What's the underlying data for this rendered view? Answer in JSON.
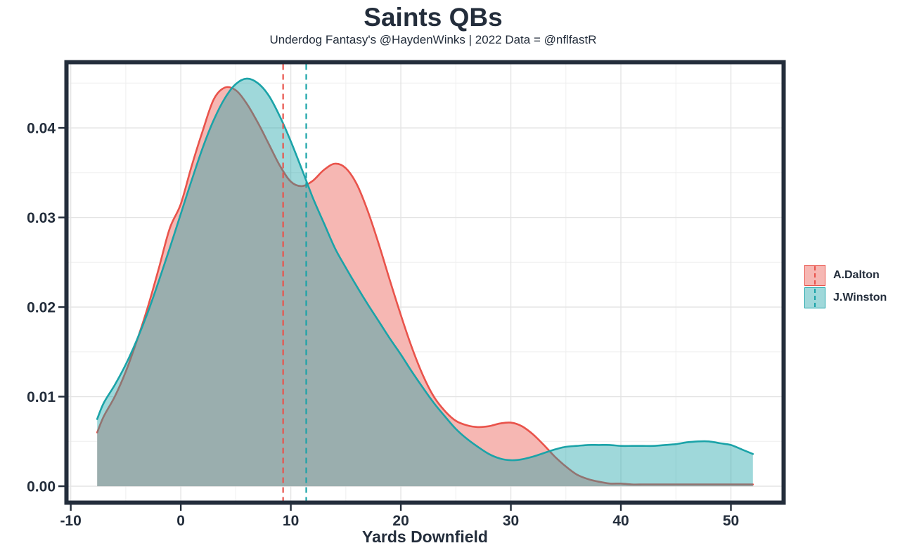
{
  "header": {
    "title": "Saints QBs",
    "subtitle": "Underdog Fantasy's @HaydenWinks | 2022 Data = @nflfastR"
  },
  "chart_data": {
    "type": "area",
    "subtype": "kernel-density",
    "title": "Saints QBs",
    "subtitle": "Underdog Fantasy's @HaydenWinks | 2022 Data = @nflfastR",
    "xlabel": "Yards Downfield",
    "ylabel": "",
    "xlim": [
      -10.2,
      54.6
    ],
    "ylim": [
      -0.0016,
      0.0471
    ],
    "grid": "major+minor",
    "legend_position": "right",
    "x_ticks": [
      -10,
      0,
      10,
      20,
      30,
      40,
      50
    ],
    "x_tick_labels": [
      "-10",
      "0",
      "10",
      "20",
      "30",
      "40",
      "50"
    ],
    "x_minor_ticks": [
      -5,
      5,
      15,
      25,
      35,
      45
    ],
    "y_ticks": [
      0,
      0.01,
      0.02,
      0.03,
      0.04
    ],
    "y_tick_labels": [
      "0.00",
      "0.01",
      "0.02",
      "0.03",
      "0.04"
    ],
    "y_minor_ticks": [
      0.005,
      0.015,
      0.025,
      0.035,
      0.045
    ],
    "x": [
      -7.6,
      -7,
      -6,
      -5,
      -4,
      -3,
      -2,
      -1,
      0,
      1,
      2,
      3,
      4,
      5,
      6,
      7,
      8,
      9,
      10,
      11,
      12,
      13,
      14,
      15,
      16,
      17,
      18,
      19,
      20,
      21,
      22,
      23,
      24,
      25,
      26,
      27,
      28,
      29,
      30,
      31,
      32,
      33,
      34,
      35,
      36,
      37,
      38,
      39,
      40,
      41,
      42,
      43,
      44,
      45,
      46,
      47,
      48,
      49,
      50,
      51,
      52
    ],
    "series": [
      {
        "name": "A.Dalton",
        "color": "#E9534B",
        "fill": "#F6B7B3",
        "fill_alpha": 0.42,
        "legend_fill": "#F6B7B3",
        "mean_vline_x": 9.3,
        "y": [
          0.006,
          0.0078,
          0.01,
          0.0128,
          0.0162,
          0.02,
          0.0243,
          0.0288,
          0.0315,
          0.0358,
          0.0397,
          0.0432,
          0.0445,
          0.0442,
          0.0427,
          0.0406,
          0.0382,
          0.0358,
          0.034,
          0.0335,
          0.0341,
          0.0353,
          0.036,
          0.0355,
          0.0337,
          0.0307,
          0.027,
          0.023,
          0.0191,
          0.0155,
          0.0124,
          0.01,
          0.0084,
          0.0073,
          0.0068,
          0.0066,
          0.0067,
          0.007,
          0.0071,
          0.0067,
          0.0058,
          0.0046,
          0.0033,
          0.0022,
          0.0013,
          0.0008,
          0.0005,
          0.0003,
          0.0003,
          0.0002,
          0.0002,
          0.0002,
          0.0002,
          0.0002,
          0.0002,
          0.0002,
          0.0002,
          0.0002,
          0.0002,
          0.0002,
          0.0002
        ]
      },
      {
        "name": "J.Winston",
        "color": "#1BA3A8",
        "fill": "rgba(27,163,168,0.42)",
        "fill_alpha": 0.42,
        "legend_fill": "#9FD8DA",
        "mean_vline_x": 11.4,
        "y": [
          0.0075,
          0.0093,
          0.0113,
          0.0136,
          0.0163,
          0.0194,
          0.0229,
          0.0266,
          0.0304,
          0.0342,
          0.0378,
          0.0409,
          0.0433,
          0.0449,
          0.0455,
          0.045,
          0.0436,
          0.0413,
          0.0385,
          0.0354,
          0.0322,
          0.0294,
          0.0266,
          0.0244,
          0.0223,
          0.0203,
          0.0184,
          0.0165,
          0.0147,
          0.0128,
          0.011,
          0.0093,
          0.0078,
          0.0064,
          0.0053,
          0.0044,
          0.0036,
          0.0031,
          0.0029,
          0.003,
          0.0033,
          0.0037,
          0.0041,
          0.0044,
          0.0045,
          0.0046,
          0.0046,
          0.0046,
          0.0045,
          0.0045,
          0.0045,
          0.0045,
          0.0046,
          0.0047,
          0.0049,
          0.005,
          0.005,
          0.0048,
          0.0046,
          0.0041,
          0.0036
        ]
      }
    ]
  },
  "colors": {
    "text": "#232D3B",
    "panel_border": "#232D3B",
    "grid_major": "#E4E4E4",
    "grid_minor": "#F0F0F0",
    "background": "#FFFFFF"
  }
}
